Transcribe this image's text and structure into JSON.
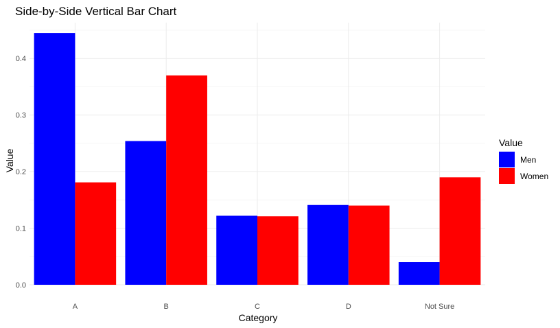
{
  "chart_data": {
    "type": "bar",
    "title": "Side-by-Side Vertical Bar Chart",
    "xlabel": "Category",
    "ylabel": "Value",
    "categories": [
      "A",
      "B",
      "C",
      "D",
      "Not Sure"
    ],
    "series": [
      {
        "name": "Men",
        "color": "#0000ff",
        "values": [
          0.445,
          0.254,
          0.122,
          0.141,
          0.04
        ]
      },
      {
        "name": "Women",
        "color": "#ff0000",
        "values": [
          0.181,
          0.37,
          0.121,
          0.14,
          0.19
        ]
      }
    ],
    "ylim": [
      0,
      0.45
    ],
    "yticks": [
      0.0,
      0.1,
      0.2,
      0.3,
      0.4
    ],
    "ytick_labels": [
      "0.0",
      "0.1",
      "0.2",
      "0.3",
      "0.4"
    ],
    "grid": true,
    "legend": {
      "title": "Value",
      "placement": "right"
    }
  }
}
